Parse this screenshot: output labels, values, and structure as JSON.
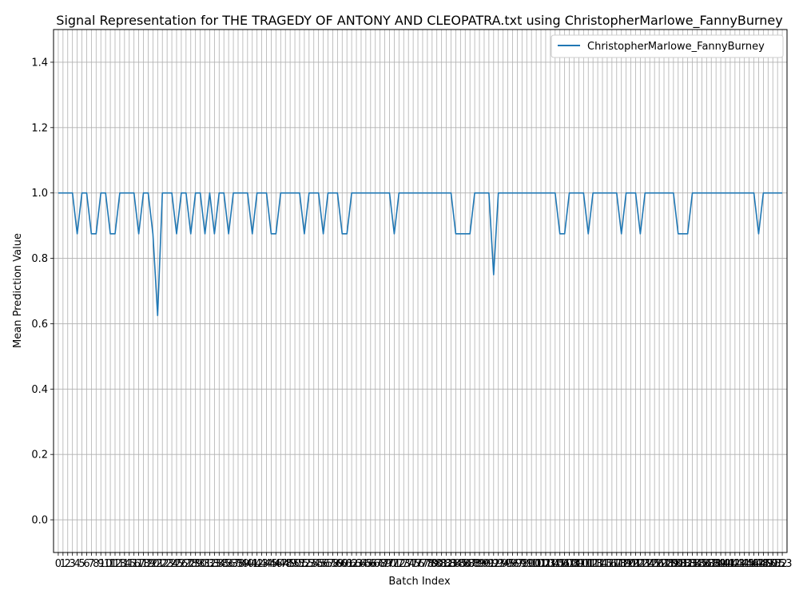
{
  "chart_data": {
    "type": "line",
    "title": "Signal Representation for THE TRAGEDY OF ANTONY AND CLEOPATRA.txt using ChristopherMarlowe_FannyBurney",
    "xlabel": "Batch Index",
    "ylabel": "Mean Prediction Value",
    "xlim": [
      -1,
      154
    ],
    "ylim": [
      -0.1,
      1.5
    ],
    "yticks": [
      0.0,
      0.2,
      0.4,
      0.6,
      0.8,
      1.0,
      1.2,
      1.4
    ],
    "xticks_start": 0,
    "xticks_end": 153,
    "grid": true,
    "legend_position": "top-right",
    "series": [
      {
        "name": "ChristopherMarlowe_FannyBurney",
        "color": "#1f77b4",
        "x": [
          0,
          1,
          2,
          3,
          4,
          5,
          6,
          7,
          8,
          9,
          10,
          11,
          12,
          13,
          14,
          15,
          16,
          17,
          18,
          19,
          20,
          21,
          22,
          23,
          24,
          25,
          26,
          27,
          28,
          29,
          30,
          31,
          32,
          33,
          34,
          35,
          36,
          37,
          38,
          39,
          40,
          41,
          42,
          43,
          44,
          45,
          46,
          47,
          48,
          49,
          50,
          51,
          52,
          53,
          54,
          55,
          56,
          57,
          58,
          59,
          60,
          61,
          62,
          63,
          64,
          65,
          66,
          67,
          68,
          69,
          70,
          71,
          72,
          73,
          74,
          75,
          76,
          77,
          78,
          79,
          80,
          81,
          82,
          83,
          84,
          85,
          86,
          87,
          88,
          89,
          90,
          91,
          92,
          93,
          94,
          95,
          96,
          97,
          98,
          99,
          100,
          101,
          102,
          103,
          104,
          105,
          106,
          107,
          108,
          109,
          110,
          111,
          112,
          113,
          114,
          115,
          116,
          117,
          118,
          119,
          120,
          121,
          122,
          123,
          124,
          125,
          126,
          127,
          128,
          129,
          130,
          131,
          132,
          133,
          134,
          135,
          136,
          137,
          138,
          139,
          140,
          141,
          142,
          143,
          144,
          145,
          146,
          147,
          148,
          149,
          150,
          151,
          152,
          153
        ],
        "y": [
          1,
          1,
          1,
          1,
          0.875,
          1,
          1,
          0.875,
          0.875,
          1,
          1,
          0.875,
          0.875,
          1,
          1,
          1,
          1,
          0.875,
          1,
          1,
          0.875,
          0.625,
          1,
          1,
          1,
          0.875,
          1,
          1,
          0.875,
          1,
          1,
          0.875,
          1,
          0.875,
          1,
          1,
          0.875,
          1,
          1,
          1,
          1,
          0.875,
          1,
          1,
          1,
          0.875,
          0.875,
          1,
          1,
          1,
          1,
          1,
          0.875,
          1,
          1,
          1,
          0.875,
          1,
          1,
          1,
          0.875,
          0.875,
          1,
          1,
          1,
          1,
          1,
          1,
          1,
          1,
          1,
          0.875,
          1,
          1,
          1,
          1,
          1,
          1,
          1,
          1,
          1,
          1,
          1,
          1,
          0.875,
          0.875,
          0.875,
          0.875,
          1,
          1,
          1,
          1,
          0.75,
          1,
          1,
          1,
          1,
          1,
          1,
          1,
          1,
          1,
          1,
          1,
          1,
          1,
          0.875,
          0.875,
          1,
          1,
          1,
          1,
          0.875,
          1,
          1,
          1,
          1,
          1,
          1,
          0.875,
          1,
          1,
          1,
          0.875,
          1,
          1,
          1,
          1,
          1,
          1,
          1,
          0.875,
          0.875,
          0.875,
          1,
          1,
          1,
          1,
          1,
          1,
          1,
          1,
          1,
          1,
          1,
          1,
          1,
          1,
          0.875,
          1,
          1,
          1,
          1,
          1
        ]
      }
    ]
  }
}
